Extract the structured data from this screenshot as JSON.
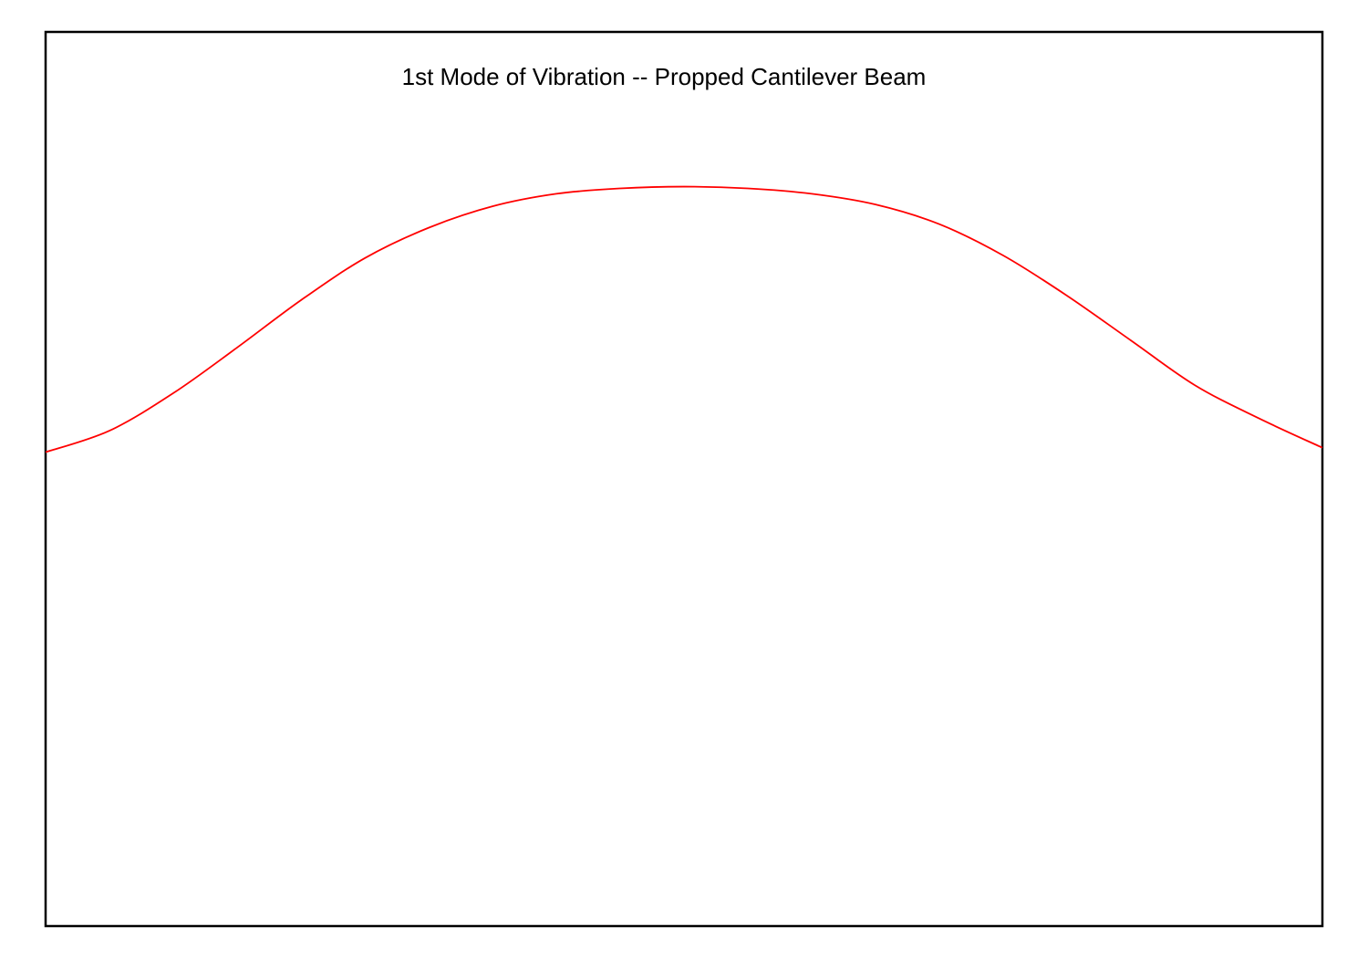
{
  "chart_data": {
    "type": "line",
    "title": "1st Mode of Vibration -- Propped Cantilever Beam",
    "xlabel": "",
    "ylabel": "",
    "xlim": [
      0,
      1
    ],
    "ylim": [
      -0.53,
      0.47
    ],
    "grid": false,
    "axes_ticks": false,
    "frame_color": "#000000",
    "series": [
      {
        "color": "#ff0000",
        "x": [
          0.0,
          0.05,
          0.1,
          0.15,
          0.2,
          0.25,
          0.3,
          0.35,
          0.4,
          0.45,
          0.5,
          0.55,
          0.6,
          0.65,
          0.7,
          0.75,
          0.8,
          0.85,
          0.9,
          0.95,
          1.0
        ],
        "y": [
          0.0,
          0.024,
          0.066,
          0.117,
          0.17,
          0.217,
          0.251,
          0.275,
          0.289,
          0.295,
          0.297,
          0.295,
          0.289,
          0.277,
          0.255,
          0.22,
          0.175,
          0.125,
          0.075,
          0.038,
          0.005
        ]
      }
    ]
  }
}
